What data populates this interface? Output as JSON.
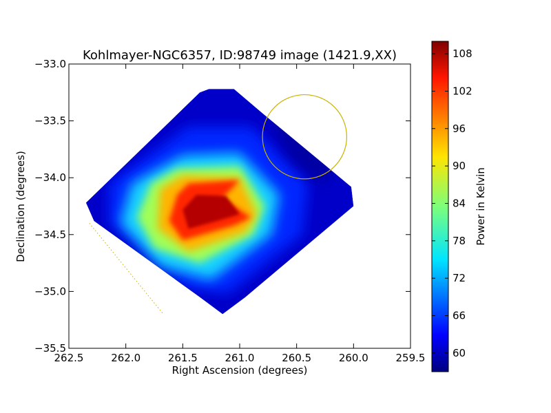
{
  "chart_data": {
    "type": "heatmap",
    "title": "Kohlmayer-NGC6357, ID:98749 image (1421.9,XX)",
    "xlabel": "Right Ascension (degrees)",
    "ylabel": "Declination (degrees)",
    "xlim": [
      262.5,
      259.5
    ],
    "ylim": [
      -35.5,
      -33.0
    ],
    "x_ticks": [
      262.5,
      262.0,
      261.5,
      261.0,
      260.5,
      260.0,
      259.5
    ],
    "x_tick_labels": [
      "262.5",
      "262.0",
      "261.5",
      "261.0",
      "260.5",
      "260.0",
      "259.5"
    ],
    "y_ticks": [
      -33.0,
      -33.5,
      -34.0,
      -34.5,
      -35.0,
      -35.5
    ],
    "y_tick_labels": [
      "−33.0",
      "−33.5",
      "−34.0",
      "−34.5",
      "−35.0",
      "−35.5"
    ],
    "colorbar": {
      "label": "Power in Kelvin",
      "range": [
        57,
        110
      ],
      "ticks": [
        60,
        66,
        72,
        78,
        84,
        90,
        96,
        102,
        108
      ],
      "tick_labels": [
        "60",
        "66",
        "72",
        "78",
        "84",
        "90",
        "96",
        "102",
        "108"
      ],
      "colormap": "jet"
    },
    "map": {
      "min_value": 57,
      "peak_value": 110,
      "peak_ra": 261.25,
      "peak_dec": -34.3
    },
    "overlays": {
      "circle": {
        "ra": 260.43,
        "dec": -33.64,
        "radius_deg": 0.37,
        "color": "#c8b400"
      },
      "dotted_line": {
        "ra": [
          262.32,
          261.67
        ],
        "dec": [
          -34.4,
          -35.2
        ],
        "color": "#c8b400"
      }
    }
  }
}
